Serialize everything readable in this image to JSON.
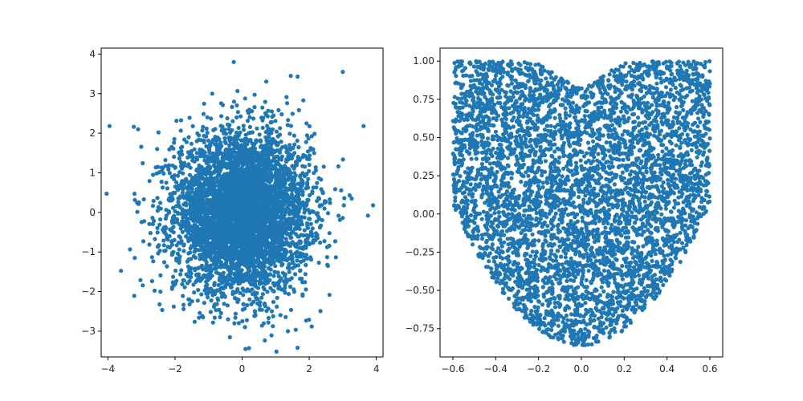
{
  "figure": {
    "background": "#ffffff"
  },
  "chart_data": [
    {
      "type": "scatter",
      "title": "",
      "xlabel": "",
      "ylabel": "",
      "description_of_points": "about 5000 points drawn from a 2D standard normal distribution centred at (0,0)",
      "distribution": {
        "kind": "normal2d",
        "mean": [
          0,
          0
        ],
        "std": [
          1,
          1
        ],
        "n": 5000
      },
      "xlim": [
        -4.2,
        4.2
      ],
      "ylim": [
        -3.65,
        4.15
      ],
      "xticks": [
        -4,
        -2,
        0,
        2,
        4
      ],
      "yticks": [
        -3,
        -2,
        -1,
        0,
        1,
        2,
        3,
        4
      ],
      "xtick_labels": [
        "−4",
        "−2",
        "0",
        "2",
        "4"
      ],
      "ytick_labels": [
        "−3",
        "−2",
        "−1",
        "0",
        "1",
        "2",
        "3",
        "4"
      ],
      "color": "#1f77b4",
      "grid": false,
      "legend": null,
      "outliers": [
        {
          "x": -3.95,
          "y": 2.18
        },
        {
          "x": 3.0,
          "y": 3.55
        },
        {
          "x": -0.25,
          "y": 3.8
        },
        {
          "x": 3.9,
          "y": 0.18
        },
        {
          "x": 3.75,
          "y": -0.08
        },
        {
          "x": 0.1,
          "y": -3.45
        },
        {
          "x": -3.1,
          "y": 2.1
        },
        {
          "x": -3.2,
          "y": -1.15
        },
        {
          "x": 1.45,
          "y": 3.45
        }
      ]
    },
    {
      "type": "scatter",
      "title": "",
      "xlabel": "",
      "ylabel": "",
      "description_of_points": "about 5000 points filling a parabola-bounded (V/U shaped) region: x in [-0.6, 0.6], y between 2.5*x^2 - 0.85 and 1 with a dip near x=0 at the top",
      "distribution": {
        "kind": "parabolic_region",
        "n": 5000
      },
      "xlim": [
        -0.66,
        0.66
      ],
      "ylim": [
        -0.935,
        1.085
      ],
      "xticks": [
        -0.6,
        -0.4,
        -0.2,
        0.0,
        0.2,
        0.4,
        0.6
      ],
      "yticks": [
        -0.75,
        -0.5,
        -0.25,
        0.0,
        0.25,
        0.5,
        0.75,
        1.0
      ],
      "xtick_labels": [
        "−0.6",
        "−0.4",
        "−0.2",
        "0.0",
        "0.2",
        "0.4",
        "0.6"
      ],
      "ytick_labels": [
        "−0.75",
        "−0.50",
        "−0.25",
        "0.00",
        "0.25",
        "0.50",
        "0.75",
        "1.00"
      ],
      "color": "#1f77b4",
      "grid": false,
      "legend": null
    }
  ]
}
